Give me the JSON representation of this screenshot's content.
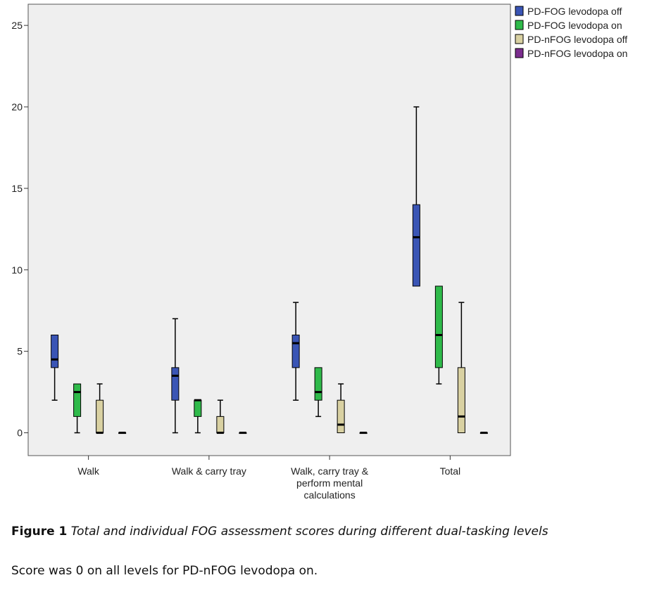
{
  "chart_data": {
    "type": "boxplot",
    "categories": [
      "Walk",
      "Walk & carry tray",
      "Walk, carry tray & perform mental calculations",
      "Total"
    ],
    "category_lines": [
      [
        "Walk"
      ],
      [
        "Walk & carry tray"
      ],
      [
        "Walk, carry tray &",
        "perform mental",
        "calculations"
      ],
      [
        "Total"
      ]
    ],
    "yticks": [
      0,
      5,
      10,
      15,
      20,
      25
    ],
    "ylim": [
      -1.4,
      26.3
    ],
    "legend_position": "top-right",
    "series": [
      {
        "name": "PD-FOG levodopa off",
        "color": "#3a55b5",
        "boxes": [
          {
            "min": 2,
            "q1": 4,
            "median": 4.5,
            "q3": 6,
            "max": 6
          },
          {
            "min": 0,
            "q1": 2,
            "median": 3.5,
            "q3": 4,
            "max": 7
          },
          {
            "min": 2,
            "q1": 4,
            "median": 5.5,
            "q3": 6,
            "max": 8
          },
          {
            "min": 9,
            "q1": 9,
            "median": 12,
            "q3": 14,
            "max": 20
          }
        ]
      },
      {
        "name": "PD-FOG levodopa on",
        "color": "#2fba4a",
        "boxes": [
          {
            "min": 0,
            "q1": 1,
            "median": 2.5,
            "q3": 3,
            "max": 3
          },
          {
            "min": 0,
            "q1": 1,
            "median": 2,
            "q3": 2,
            "max": 2
          },
          {
            "min": 1,
            "q1": 2,
            "median": 2.5,
            "q3": 4,
            "max": 4
          },
          {
            "min": 3,
            "q1": 4,
            "median": 6,
            "q3": 9,
            "max": 9
          }
        ]
      },
      {
        "name": "PD-nFOG levodopa off",
        "color": "#d9d1a2",
        "boxes": [
          {
            "min": 0,
            "q1": 0,
            "median": 0,
            "q3": 2,
            "max": 3
          },
          {
            "min": 0,
            "q1": 0,
            "median": 0,
            "q3": 1,
            "max": 2
          },
          {
            "min": 0,
            "q1": 0,
            "median": 0.5,
            "q3": 2,
            "max": 3
          },
          {
            "min": 0,
            "q1": 0,
            "median": 1,
            "q3": 4,
            "max": 8
          }
        ]
      },
      {
        "name": "PD-nFOG levodopa on",
        "color": "#7b2d8e",
        "boxes": [
          {
            "min": 0,
            "q1": 0,
            "median": 0,
            "q3": 0,
            "max": 0
          },
          {
            "min": 0,
            "q1": 0,
            "median": 0,
            "q3": 0,
            "max": 0
          },
          {
            "min": 0,
            "q1": 0,
            "median": 0,
            "q3": 0,
            "max": 0
          },
          {
            "min": 0,
            "q1": 0,
            "median": 0,
            "q3": 0,
            "max": 0
          }
        ]
      }
    ],
    "colors": {
      "plot_background": "#efefef",
      "axis": "#333333"
    }
  },
  "caption": {
    "label": "Figure 1",
    "text": "Total and individual FOG assessment scores during different dual-tasking levels"
  },
  "note": "Score was 0 on all levels for PD-nFOG levodopa on."
}
